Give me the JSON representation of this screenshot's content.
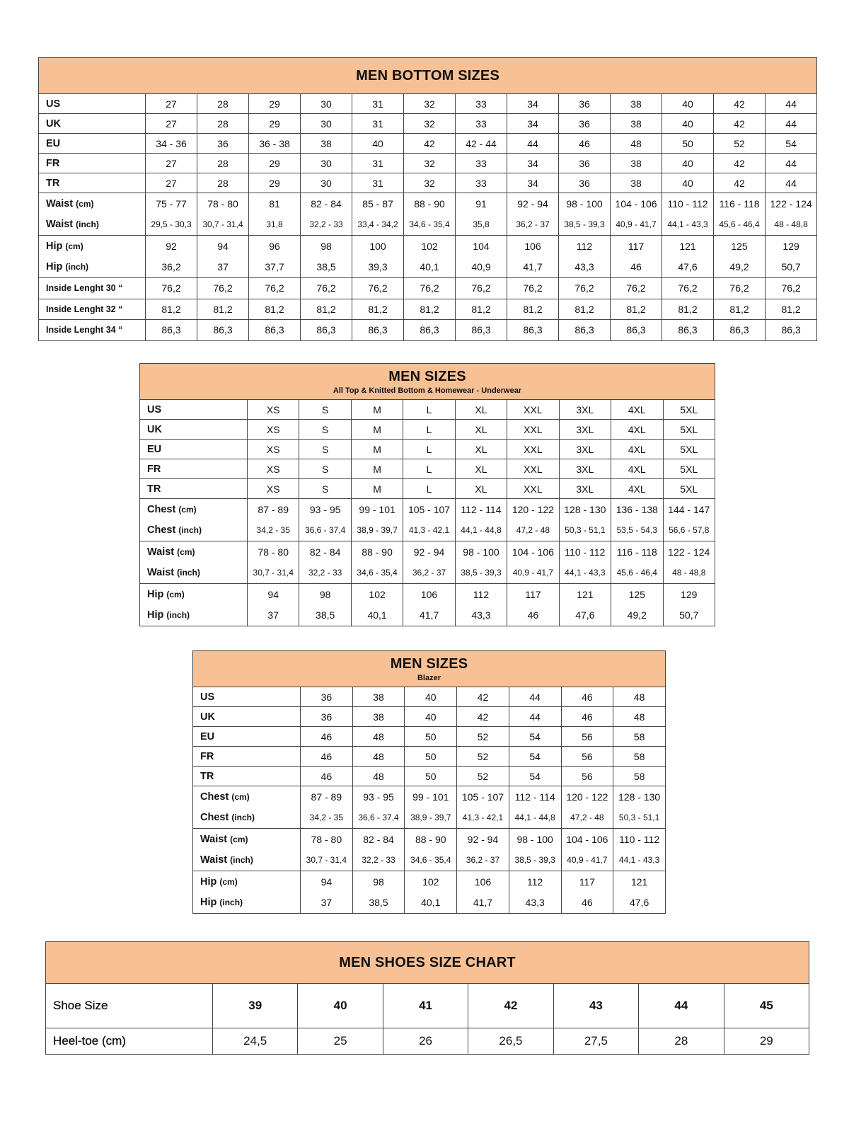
{
  "header_color": "#f8c095",
  "tables": [
    {
      "title": "MEN BOTTOM SIZES",
      "subtitle": "",
      "rows": [
        {
          "label": "US",
          "values": [
            "27",
            "28",
            "29",
            "30",
            "31",
            "32",
            "33",
            "34",
            "36",
            "38",
            "40",
            "42",
            "44"
          ]
        },
        {
          "label": "UK",
          "values": [
            "27",
            "28",
            "29",
            "30",
            "31",
            "32",
            "33",
            "34",
            "36",
            "38",
            "40",
            "42",
            "44"
          ]
        },
        {
          "label": "EU",
          "values": [
            "34 - 36",
            "36",
            "36 - 38",
            "38",
            "40",
            "42",
            "42 - 44",
            "44",
            "46",
            "48",
            "50",
            "52",
            "54"
          ]
        },
        {
          "label": "FR",
          "values": [
            "27",
            "28",
            "29",
            "30",
            "31",
            "32",
            "33",
            "34",
            "36",
            "38",
            "40",
            "42",
            "44"
          ]
        },
        {
          "label": "TR",
          "values": [
            "27",
            "28",
            "29",
            "30",
            "31",
            "32",
            "33",
            "34",
            "36",
            "38",
            "40",
            "42",
            "44"
          ]
        },
        {
          "label": "Waist",
          "unit": "(cm)",
          "group": "top",
          "values": [
            "75 - 77",
            "78 - 80",
            "81",
            "82 - 84",
            "85 - 87",
            "88 - 90",
            "91",
            "92 - 94",
            "98 - 100",
            "104 - 106",
            "110 - 112",
            "116 - 118",
            "122 - 124"
          ]
        },
        {
          "label": "Waist",
          "unit": "(inch)",
          "group": "bot",
          "small": true,
          "values": [
            "29,5 - 30,3",
            "30,7 - 31,4",
            "31,8",
            "32,2 - 33",
            "33,4  - 34,2",
            "34,6 - 35,4",
            "35,8",
            "36,2 - 37",
            "38,5 - 39,3",
            "40,9 - 41,7",
            "44,1 - 43,3",
            "45,6 - 46,4",
            "48 - 48,8"
          ]
        },
        {
          "label": "Hip",
          "unit": "(cm)",
          "group": "top",
          "values": [
            "92",
            "94",
            "96",
            "98",
            "100",
            "102",
            "104",
            "106",
            "112",
            "117",
            "121",
            "125",
            "129"
          ]
        },
        {
          "label": "Hip",
          "unit": "(inch)",
          "group": "bot",
          "values": [
            "36,2",
            "37",
            "37,7",
            "38,5",
            "39,3",
            "40,1",
            "40,9",
            "41,7",
            "43,3",
            "46",
            "47,6",
            "49,2",
            "50,7"
          ]
        },
        {
          "label": "Inside Lenght 30 “",
          "inside": true,
          "values": [
            "76,2",
            "76,2",
            "76,2",
            "76,2",
            "76,2",
            "76,2",
            "76,2",
            "76,2",
            "76,2",
            "76,2",
            "76,2",
            "76,2",
            "76,2"
          ]
        },
        {
          "label": "Inside Lenght 32 “",
          "inside": true,
          "values": [
            "81,2",
            "81,2",
            "81,2",
            "81,2",
            "81,2",
            "81,2",
            "81,2",
            "81,2",
            "81,2",
            "81,2",
            "81,2",
            "81,2",
            "81,2"
          ]
        },
        {
          "label": "Inside Lenght 34 “",
          "inside": true,
          "values": [
            "86,3",
            "86,3",
            "86,3",
            "86,3",
            "86,3",
            "86,3",
            "86,3",
            "86,3",
            "86,3",
            "86,3",
            "86,3",
            "86,3",
            "86,3"
          ]
        }
      ]
    },
    {
      "title": "MEN SIZES",
      "subtitle": "All Top & Knitted Bottom & Homewear - Underwear",
      "rows": [
        {
          "label": "US",
          "values": [
            "XS",
            "S",
            "M",
            "L",
            "XL",
            "XXL",
            "3XL",
            "4XL",
            "5XL"
          ]
        },
        {
          "label": "UK",
          "values": [
            "XS",
            "S",
            "M",
            "L",
            "XL",
            "XXL",
            "3XL",
            "4XL",
            "5XL"
          ]
        },
        {
          "label": "EU",
          "values": [
            "XS",
            "S",
            "M",
            "L",
            "XL",
            "XXL",
            "3XL",
            "4XL",
            "5XL"
          ]
        },
        {
          "label": "FR",
          "values": [
            "XS",
            "S",
            "M",
            "L",
            "XL",
            "XXL",
            "3XL",
            "4XL",
            "5XL"
          ]
        },
        {
          "label": "TR",
          "values": [
            "XS",
            "S",
            "M",
            "L",
            "XL",
            "XXL",
            "3XL",
            "4XL",
            "5XL"
          ]
        },
        {
          "label": "Chest",
          "unit": "(cm)",
          "group": "top",
          "values": [
            "87 - 89",
            "93 - 95",
            "99 - 101",
            "105 - 107",
            "112 - 114",
            "120 - 122",
            "128 - 130",
            "136 - 138",
            "144 - 147"
          ]
        },
        {
          "label": "Chest",
          "unit": "(inch)",
          "group": "bot",
          "small": true,
          "values": [
            "34,2 - 35",
            "36,6 - 37,4",
            "38,9 - 39,7",
            "41,3 - 42,1",
            "44,1 - 44,8",
            "47,2 - 48",
            "50,3 - 51,1",
            "53,5 - 54,3",
            "56,6 - 57,8"
          ]
        },
        {
          "label": "Waist",
          "unit": "(cm)",
          "group": "top",
          "values": [
            "78 - 80",
            "82 - 84",
            "88 - 90",
            "92 - 94",
            "98 - 100",
            "104 - 106",
            "110 - 112",
            "116 - 118",
            "122 - 124"
          ]
        },
        {
          "label": "Waist",
          "unit": "(inch)",
          "group": "bot",
          "small": true,
          "values": [
            "30,7 - 31,4",
            "32,2 - 33",
            "34,6 - 35,4",
            "36,2 - 37",
            "38,5 - 39,3",
            "40,9 - 41,7",
            "44,1 - 43,3",
            "45,6 - 46,4",
            "48 - 48,8"
          ]
        },
        {
          "label": "Hip",
          "unit": "(cm)",
          "group": "top",
          "values": [
            "94",
            "98",
            "102",
            "106",
            "112",
            "117",
            "121",
            "125",
            "129"
          ]
        },
        {
          "label": "Hip",
          "unit": "(inch)",
          "group": "bot",
          "values": [
            "37",
            "38,5",
            "40,1",
            "41,7",
            "43,3",
            "46",
            "47,6",
            "49,2",
            "50,7"
          ]
        }
      ]
    },
    {
      "title": "MEN SIZES",
      "subtitle": "Blazer",
      "rows": [
        {
          "label": "US",
          "values": [
            "36",
            "38",
            "40",
            "42",
            "44",
            "46",
            "48"
          ]
        },
        {
          "label": "UK",
          "values": [
            "36",
            "38",
            "40",
            "42",
            "44",
            "46",
            "48"
          ]
        },
        {
          "label": "EU",
          "values": [
            "46",
            "48",
            "50",
            "52",
            "54",
            "56",
            "58"
          ]
        },
        {
          "label": "FR",
          "values": [
            "46",
            "48",
            "50",
            "52",
            "54",
            "56",
            "58"
          ]
        },
        {
          "label": "TR",
          "values": [
            "46",
            "48",
            "50",
            "52",
            "54",
            "56",
            "58"
          ]
        },
        {
          "label": "Chest",
          "unit": "(cm)",
          "group": "top",
          "values": [
            "87 - 89",
            "93 - 95",
            "99 - 101",
            "105 - 107",
            "112 - 114",
            "120 - 122",
            "128 - 130"
          ]
        },
        {
          "label": "Chest",
          "unit": "(inch)",
          "group": "bot",
          "small": true,
          "values": [
            "34,2 - 35",
            "36,6 - 37,4",
            "38,9 - 39,7",
            "41,3 - 42,1",
            "44,1 - 44,8",
            "47,2 - 48",
            "50,3 - 51,1"
          ]
        },
        {
          "label": "Waist",
          "unit": "(cm)",
          "group": "top",
          "values": [
            "78 - 80",
            "82 - 84",
            "88 - 90",
            "92 - 94",
            "98 - 100",
            "104 - 106",
            "110 - 112"
          ]
        },
        {
          "label": "Waist",
          "unit": "(inch)",
          "group": "bot",
          "small": true,
          "values": [
            "30,7 - 31,4",
            "32,2 - 33",
            "34,6 - 35,4",
            "36,2 - 37",
            "38,5 - 39,3",
            "40,9 - 41,7",
            "44,1 - 43,3"
          ]
        },
        {
          "label": "Hip",
          "unit": "(cm)",
          "group": "top",
          "values": [
            "94",
            "98",
            "102",
            "106",
            "112",
            "117",
            "121"
          ]
        },
        {
          "label": "Hip",
          "unit": "(inch)",
          "group": "bot",
          "values": [
            "37",
            "38,5",
            "40,1",
            "41,7",
            "43,3",
            "46",
            "47,6"
          ]
        }
      ]
    },
    {
      "title": "MEN SHOES SIZE CHART",
      "subtitle": "",
      "rows": [
        {
          "label": "Shoe Size",
          "values": [
            "39",
            "40",
            "41",
            "42",
            "43",
            "44",
            "45"
          ]
        },
        {
          "label": "Heel-toe (cm)",
          "values": [
            "24,5",
            "25",
            "26",
            "26,5",
            "27,5",
            "28",
            "29"
          ]
        }
      ]
    }
  ]
}
